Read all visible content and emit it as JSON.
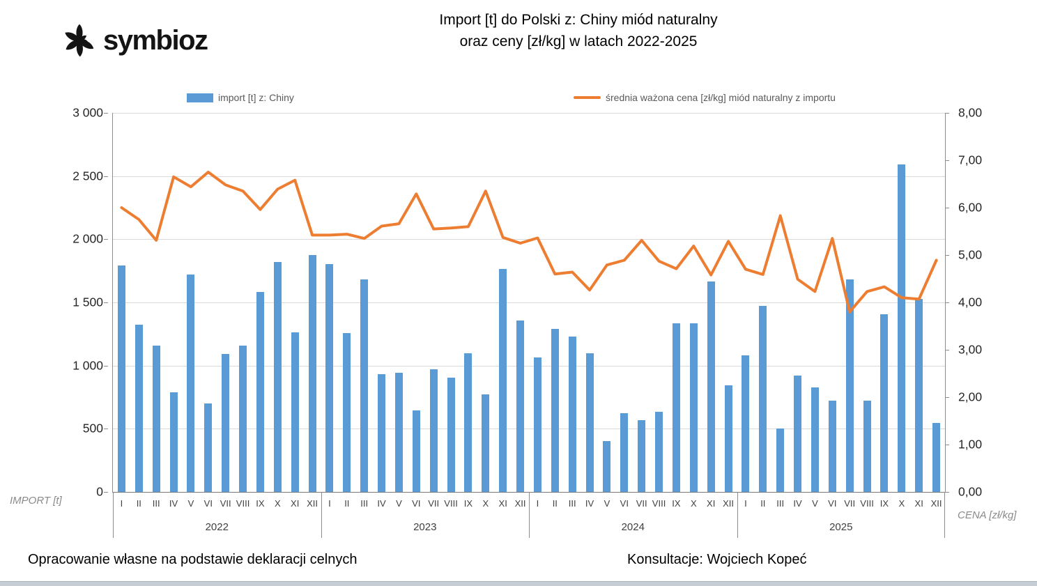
{
  "logo": {
    "text": "symbioz"
  },
  "title": {
    "line1": "Import [t] do Polski z: Chiny miód naturalny",
    "line2": "oraz ceny [zł/kg] w latach 2022-2025"
  },
  "legend": {
    "bar_label": "import [t] z: Chiny",
    "line_label": "średnia ważona cena [zł/kg] miód naturalny z importu"
  },
  "axes": {
    "left": {
      "title": "IMPORT [t]",
      "tick_labels": [
        "3 000",
        "2 500",
        "2 000",
        "1 500",
        "1 000",
        "500",
        "0"
      ]
    },
    "right": {
      "title": "CENA [zł/kg]",
      "tick_labels": [
        "8,00",
        "7,00",
        "6,00",
        "5,00",
        "4,00",
        "3,00",
        "2,00",
        "1,00",
        "0,00"
      ]
    }
  },
  "footer": {
    "source": "Opracowanie własne na podstawie deklaracji celnych",
    "consult": "Konsultacje: Wojciech Kopeć"
  },
  "colors": {
    "bar": "#5B9BD5",
    "line": "#ED7D31",
    "grid": "#D9D9D9",
    "axis": "#8c8c8c",
    "bottom_strip": "#c6cdd5"
  },
  "chart_data": {
    "type": "bar+line",
    "title": "Import [t] do Polski z: Chiny miód naturalny oraz ceny [zł/kg] w latach 2022-2025",
    "years": [
      "2022",
      "2023",
      "2024",
      "2025"
    ],
    "months": [
      "I",
      "II",
      "III",
      "IV",
      "V",
      "VI",
      "VII",
      "VIII",
      "IX",
      "X",
      "XI",
      "XII"
    ],
    "left_axis": {
      "label": "IMPORT [t]",
      "range": [
        0,
        3000
      ],
      "tick_step": 500
    },
    "right_axis": {
      "label": "CENA [zł/kg]",
      "range": [
        0,
        8
      ],
      "tick_step": 1
    },
    "grid": "horizontal",
    "legend_position": "top",
    "series": [
      {
        "name": "import [t] z: Chiny",
        "type": "bar",
        "axis": "left",
        "color": "#5B9BD5",
        "values": [
          1790,
          1325,
          1160,
          790,
          1720,
          700,
          1090,
          1160,
          1585,
          1820,
          1265,
          1875,
          1805,
          1255,
          1680,
          935,
          945,
          645,
          970,
          905,
          1095,
          770,
          1765,
          1355,
          1065,
          1290,
          1230,
          1100,
          405,
          625,
          570,
          635,
          1335,
          1335,
          1665,
          845,
          1080,
          1470,
          500,
          920,
          830,
          720,
          1680,
          720,
          1405,
          2590,
          1530,
          545
        ]
      },
      {
        "name": "średnia ważona cena [zł/kg] miód naturalny z importu",
        "type": "line",
        "axis": "right",
        "color": "#ED7D31",
        "values": [
          6.0,
          5.75,
          5.31,
          6.65,
          6.44,
          6.75,
          6.48,
          6.35,
          5.96,
          6.39,
          6.58,
          5.42,
          5.42,
          5.44,
          5.35,
          5.61,
          5.66,
          6.29,
          5.55,
          5.57,
          5.6,
          6.35,
          5.37,
          5.25,
          5.36,
          4.6,
          4.64,
          4.26,
          4.79,
          4.89,
          5.31,
          4.87,
          4.71,
          5.19,
          4.58,
          5.29,
          4.7,
          4.59,
          5.83,
          4.49,
          4.23,
          5.35,
          3.8,
          4.23,
          4.33,
          4.1,
          4.07,
          4.89
        ]
      }
    ]
  }
}
